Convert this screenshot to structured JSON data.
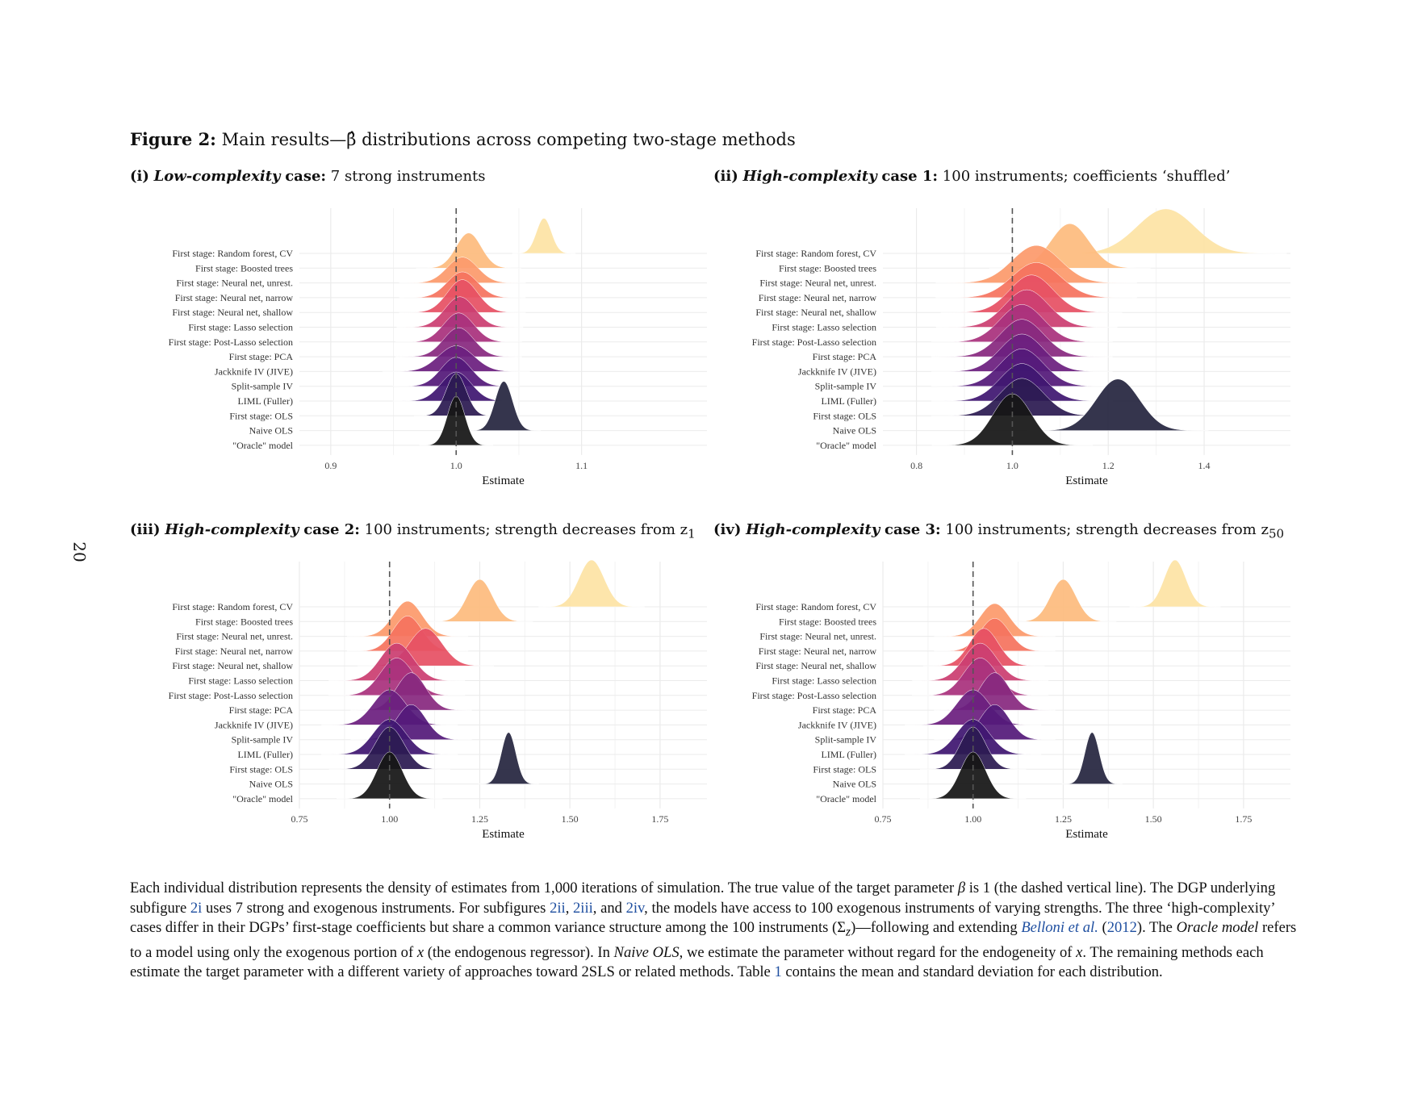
{
  "page_number": "20",
  "figure": {
    "label": "Figure 2:",
    "title": "Main results—β̂ distributions across competing two-stage methods"
  },
  "panels": [
    {
      "prefix": "(i)",
      "emph": "Low-complexity",
      "case": "case:",
      "desc": "7 strong instruments",
      "sub": ""
    },
    {
      "prefix": "(ii)",
      "emph": "High-complexity",
      "case": "case 1:",
      "desc": "100 instruments; coefficients ‘shuffled’",
      "sub": ""
    },
    {
      "prefix": "(iii)",
      "emph": "High-complexity",
      "case": "case 2:",
      "desc": "100 instruments; strength decreases from z",
      "sub": "1"
    },
    {
      "prefix": "(iv)",
      "emph": "High-complexity",
      "case": "case 3:",
      "desc": "100 instruments; strength decreases from z",
      "sub": "50"
    }
  ],
  "methods": [
    "First stage: Random forest, CV",
    "First stage: Boosted trees",
    "First stage: Neural net, unrest.",
    "First stage: Neural net, narrow",
    "First stage: Neural net, shallow",
    "First stage: Lasso selection",
    "First stage: Post-Lasso selection",
    "First stage: PCA",
    "Jackknife IV (JIVE)",
    "Split-sample IV",
    "LIML (Fuller)",
    "First stage: OLS",
    "Naive OLS",
    "\"Oracle\" model"
  ],
  "colors": [
    "#fde3a5",
    "#fdbb7e",
    "#fc9a6c",
    "#f5735f",
    "#e65164",
    "#cb3e71",
    "#a9327d",
    "#88297f",
    "#6c1f7f",
    "#541a7a",
    "#3f1771",
    "#2c1b52",
    "#262640",
    "#161616"
  ],
  "chart_data": [
    {
      "type": "ridgeline",
      "xlabel": "Estimate",
      "xlim": [
        0.875,
        1.2
      ],
      "xticks": [
        0.9,
        1.0,
        1.1
      ],
      "xtick_labels": [
        "0.9",
        "1.0",
        "1.1"
      ],
      "true_value": 1.0,
      "series": [
        {
          "mean": 1.07,
          "sd": 0.006,
          "scale": 0.75
        },
        {
          "mean": 1.01,
          "sd": 0.01,
          "scale": 0.75
        },
        {
          "mean": 1.005,
          "sd": 0.012,
          "scale": 0.55
        },
        {
          "mean": 1.005,
          "sd": 0.012,
          "scale": 0.55
        },
        {
          "mean": 1.005,
          "sd": 0.012,
          "scale": 0.7
        },
        {
          "mean": 1.003,
          "sd": 0.012,
          "scale": 0.65
        },
        {
          "mean": 1.002,
          "sd": 0.012,
          "scale": 0.62
        },
        {
          "mean": 1.002,
          "sd": 0.012,
          "scale": 0.62
        },
        {
          "mean": 1.0,
          "sd": 0.014,
          "scale": 0.55
        },
        {
          "mean": 1.0,
          "sd": 0.012,
          "scale": 0.62
        },
        {
          "mean": 1.0,
          "sd": 0.012,
          "scale": 0.62
        },
        {
          "mean": 1.0,
          "sd": 0.008,
          "scale": 0.9
        },
        {
          "mean": 1.038,
          "sd": 0.007,
          "scale": 1.05
        },
        {
          "mean": 1.0,
          "sd": 0.007,
          "scale": 1.05
        }
      ]
    },
    {
      "type": "ridgeline",
      "xlabel": "Estimate",
      "xlim": [
        0.73,
        1.58
      ],
      "xticks": [
        0.8,
        1.0,
        1.2,
        1.4
      ],
      "xtick_labels": [
        "0.8",
        "1.0",
        "1.2",
        "1.4"
      ],
      "true_value": 1.0,
      "series": [
        {
          "mean": 1.32,
          "sd": 0.06,
          "scale": 0.95
        },
        {
          "mean": 1.12,
          "sd": 0.04,
          "scale": 0.95
        },
        {
          "mean": 1.05,
          "sd": 0.05,
          "scale": 0.8
        },
        {
          "mean": 1.05,
          "sd": 0.05,
          "scale": 0.75
        },
        {
          "mean": 1.04,
          "sd": 0.045,
          "scale": 0.8
        },
        {
          "mean": 1.03,
          "sd": 0.045,
          "scale": 0.8
        },
        {
          "mean": 1.02,
          "sd": 0.045,
          "scale": 0.8
        },
        {
          "mean": 1.02,
          "sd": 0.045,
          "scale": 0.8
        },
        {
          "mean": 1.02,
          "sd": 0.045,
          "scale": 0.8
        },
        {
          "mean": 1.02,
          "sd": 0.045,
          "scale": 0.8
        },
        {
          "mean": 1.02,
          "sd": 0.045,
          "scale": 0.8
        },
        {
          "mean": 1.02,
          "sd": 0.045,
          "scale": 0.8
        },
        {
          "mean": 1.22,
          "sd": 0.045,
          "scale": 1.1
        },
        {
          "mean": 1.0,
          "sd": 0.04,
          "scale": 1.1
        }
      ]
    },
    {
      "type": "ridgeline",
      "xlabel": "Estimate",
      "xlim": [
        0.75,
        1.88
      ],
      "xticks": [
        0.75,
        1.0,
        1.25,
        1.5,
        1.75
      ],
      "xtick_labels": [
        "0.75",
        "1.00",
        "1.25",
        "1.50",
        "1.75"
      ],
      "true_value": 1.0,
      "series": [
        {
          "mean": 1.56,
          "sd": 0.035,
          "scale": 1.0
        },
        {
          "mean": 1.25,
          "sd": 0.035,
          "scale": 0.9
        },
        {
          "mean": 1.05,
          "sd": 0.04,
          "scale": 0.75
        },
        {
          "mean": 1.05,
          "sd": 0.04,
          "scale": 0.75
        },
        {
          "mean": 1.1,
          "sd": 0.045,
          "scale": 0.8
        },
        {
          "mean": 1.02,
          "sd": 0.045,
          "scale": 0.8
        },
        {
          "mean": 1.02,
          "sd": 0.045,
          "scale": 0.8
        },
        {
          "mean": 1.06,
          "sd": 0.04,
          "scale": 0.8
        },
        {
          "mean": 1.0,
          "sd": 0.045,
          "scale": 0.75
        },
        {
          "mean": 1.06,
          "sd": 0.04,
          "scale": 0.75
        },
        {
          "mean": 1.0,
          "sd": 0.045,
          "scale": 0.75
        },
        {
          "mean": 1.0,
          "sd": 0.04,
          "scale": 0.9
        },
        {
          "mean": 1.33,
          "sd": 0.02,
          "scale": 1.1
        },
        {
          "mean": 1.0,
          "sd": 0.035,
          "scale": 1.0
        }
      ]
    },
    {
      "type": "ridgeline",
      "xlabel": "Estimate",
      "xlim": [
        0.75,
        1.88
      ],
      "xticks": [
        0.75,
        1.0,
        1.25,
        1.5,
        1.75
      ],
      "xtick_labels": [
        "0.75",
        "1.00",
        "1.25",
        "1.50",
        "1.75"
      ],
      "true_value": 1.0,
      "series": [
        {
          "mean": 1.56,
          "sd": 0.03,
          "scale": 1.0
        },
        {
          "mean": 1.25,
          "sd": 0.035,
          "scale": 0.9
        },
        {
          "mean": 1.06,
          "sd": 0.04,
          "scale": 0.7
        },
        {
          "mean": 1.06,
          "sd": 0.04,
          "scale": 0.7
        },
        {
          "mean": 1.03,
          "sd": 0.04,
          "scale": 0.8
        },
        {
          "mean": 1.02,
          "sd": 0.045,
          "scale": 0.8
        },
        {
          "mean": 1.02,
          "sd": 0.045,
          "scale": 0.8
        },
        {
          "mean": 1.06,
          "sd": 0.04,
          "scale": 0.8
        },
        {
          "mean": 1.0,
          "sd": 0.045,
          "scale": 0.75
        },
        {
          "mean": 1.06,
          "sd": 0.04,
          "scale": 0.75
        },
        {
          "mean": 1.0,
          "sd": 0.045,
          "scale": 0.75
        },
        {
          "mean": 1.0,
          "sd": 0.035,
          "scale": 0.9
        },
        {
          "mean": 1.33,
          "sd": 0.02,
          "scale": 1.1
        },
        {
          "mean": 1.0,
          "sd": 0.035,
          "scale": 1.0
        }
      ]
    }
  ],
  "caption": {
    "t1": "Each individual distribution represents the density of estimates from 1,000 iterations of simulation. The true value of the target parameter ",
    "beta": "β",
    "t2": " is 1 (the dashed vertical line). The DGP underlying subfigure ",
    "ref_i": "2i",
    "t3": " uses 7 strong and exogenous instruments. For subfigures ",
    "ref_ii": "2ii",
    "sep1": ", ",
    "ref_iii": "2iii",
    "sep2": ", and ",
    "ref_iv": "2iv",
    "t4": ", the models have access to 100 exogenous instruments of varying strengths. The three ‘high-complexity’ cases differ in their DGPs’ first-stage coefficients but share a common variance structure among the 100 instruments (Σ",
    "sigma_sub": "z",
    "t5": ")—following and extending ",
    "cite_author": "Belloni et al.",
    "t6": " (",
    "cite_year": "2012",
    "t7": "). The ",
    "oracle": "Oracle model",
    "t8": " refers to a model using only the exogenous portion of ",
    "x1": "x",
    "t9": " (the endogenous regressor). In ",
    "naive": "Naive OLS",
    "t10": ", we estimate the parameter without regard for the endogeneity of ",
    "x2": "x",
    "t11": ". The remaining methods each estimate the target parameter with a different variety of approaches toward 2SLS or related methods. Table ",
    "ref_table": "1",
    "t12": " contains the mean and standard deviation for each distribution."
  }
}
